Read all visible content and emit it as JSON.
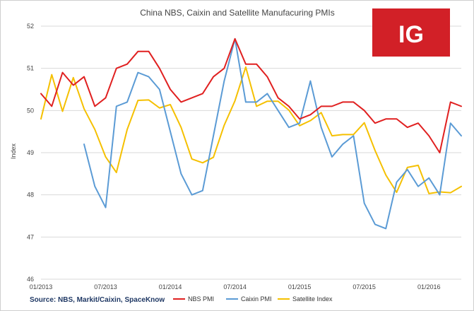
{
  "chart_data": {
    "type": "line",
    "title": "China NBS, Caixin and Satellite Manufacuring PMIs",
    "ylabel": "Index",
    "xlabel": "",
    "ylim": [
      46,
      52
    ],
    "yticks": [
      "46",
      "47",
      "48",
      "49",
      "50",
      "51",
      "52"
    ],
    "x_tick_labels": [
      "01/2013",
      "07/2013",
      "01/2014",
      "07/2014",
      "01/2015",
      "07/2015",
      "01/2016"
    ],
    "x_tick_index": [
      0,
      6,
      12,
      18,
      24,
      30,
      36
    ],
    "n_points": 40,
    "series": [
      {
        "name": "NBS PMI",
        "color": "#e02020",
        "values": [
          50.4,
          50.1,
          50.9,
          50.6,
          50.8,
          50.1,
          50.3,
          51.0,
          51.1,
          51.4,
          51.4,
          51.0,
          50.5,
          50.2,
          50.3,
          50.4,
          50.8,
          51.0,
          51.7,
          51.1,
          51.1,
          50.8,
          50.3,
          50.1,
          49.8,
          49.9,
          50.1,
          50.1,
          50.2,
          50.2,
          50.0,
          49.7,
          49.8,
          49.8,
          49.6,
          49.7,
          49.4,
          49.0,
          50.2,
          50.1
        ]
      },
      {
        "name": "Caixin PMI",
        "color": "#5b9bd5",
        "values": [
          null,
          null,
          null,
          null,
          49.2,
          48.2,
          47.7,
          50.1,
          50.2,
          50.9,
          50.8,
          50.5,
          49.5,
          48.5,
          48.0,
          48.1,
          49.4,
          50.7,
          51.7,
          50.2,
          50.2,
          50.4,
          50.0,
          49.6,
          49.7,
          50.7,
          49.6,
          48.9,
          49.2,
          49.4,
          47.8,
          47.3,
          47.2,
          48.3,
          48.6,
          48.2,
          48.4,
          48.0,
          49.7,
          49.4
        ]
      },
      {
        "name": "Satellite Index",
        "color": "#f5c000",
        "values": [
          49.8,
          50.85,
          49.98,
          50.78,
          50.04,
          49.55,
          48.9,
          48.53,
          49.55,
          50.24,
          50.25,
          50.06,
          50.14,
          49.6,
          48.85,
          48.76,
          48.89,
          49.65,
          50.23,
          51.03,
          50.1,
          50.22,
          50.22,
          50.01,
          49.64,
          49.76,
          49.95,
          49.4,
          49.43,
          49.43,
          49.71,
          49.05,
          48.47,
          48.06,
          48.65,
          48.7,
          48.03,
          48.07,
          48.05,
          48.2
        ]
      }
    ],
    "legend": {
      "position": "bottom"
    }
  },
  "source_note": "Source: NBS, Markit/Caixin, SpaceKnow",
  "logo": {
    "text": "IG",
    "color": "#d22027"
  }
}
